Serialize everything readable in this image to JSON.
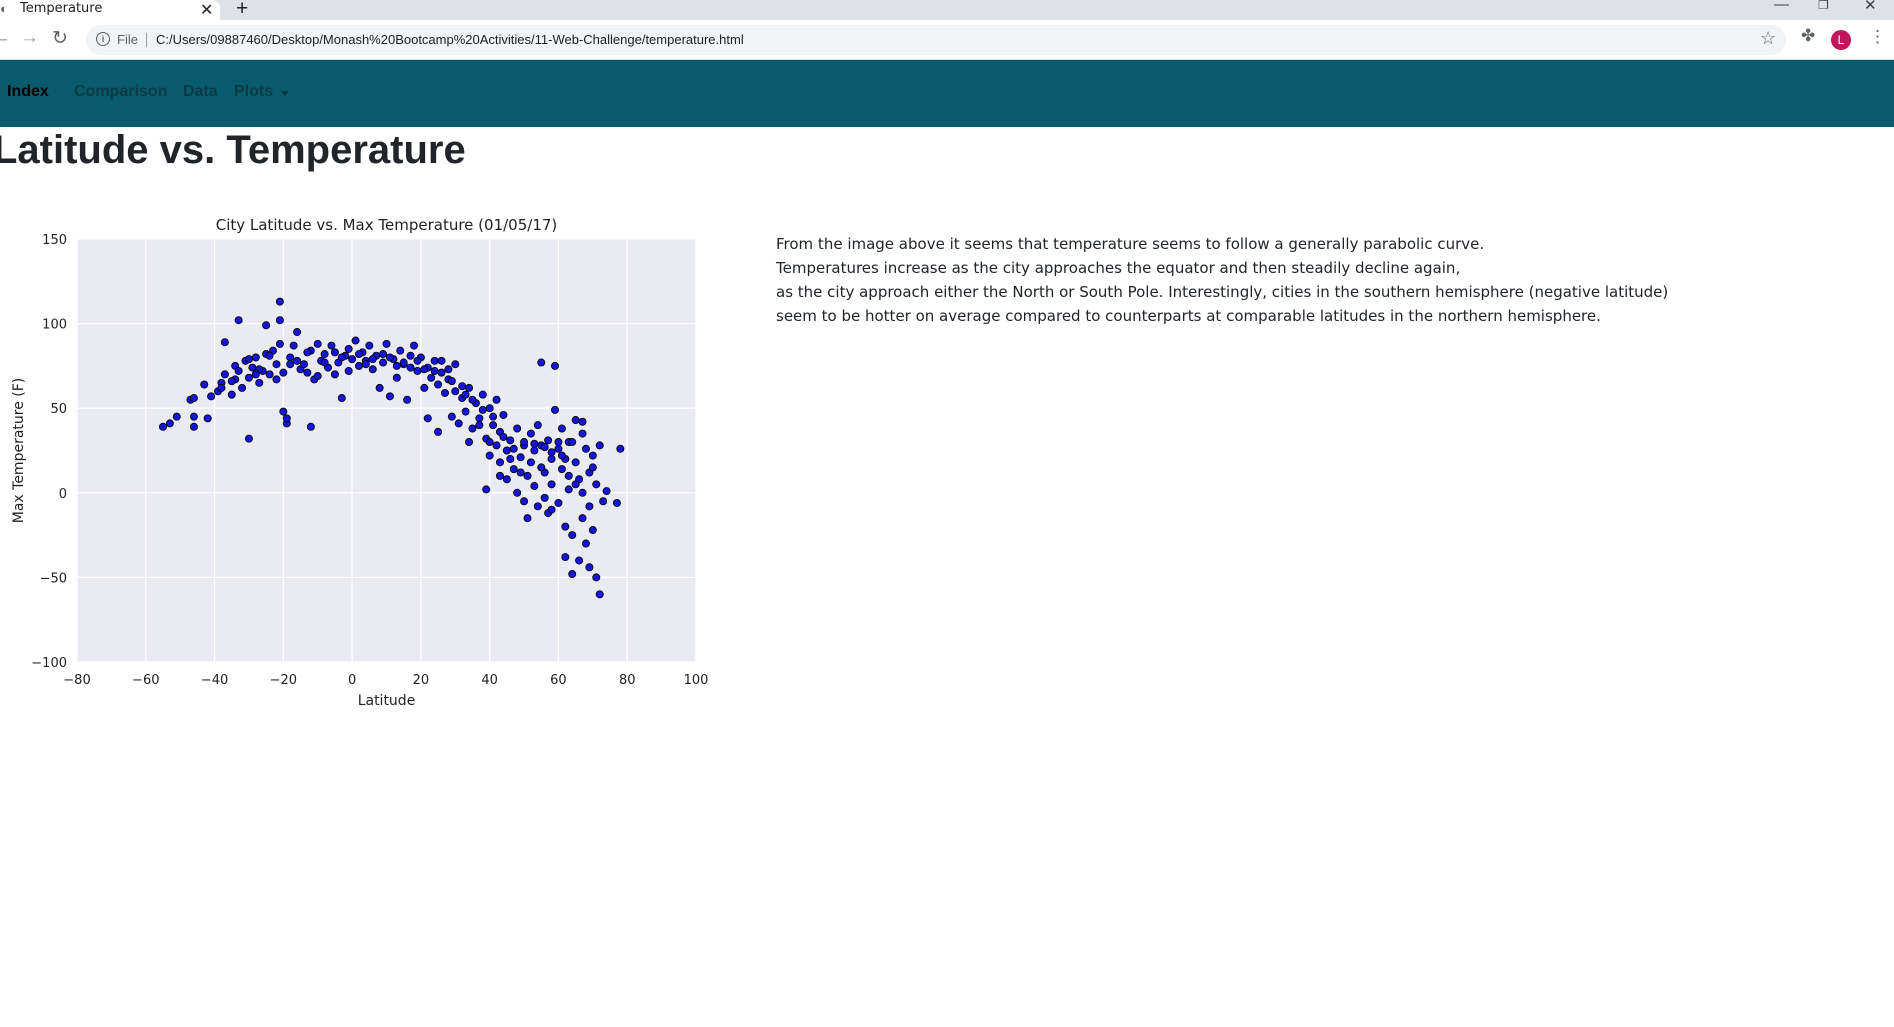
{
  "browser": {
    "tab_title": "Temperature",
    "tab_favicon": "globe-icon",
    "file_label": "File",
    "url": "C:/Users/09887460/Desktop/Monash%20Bootcamp%20Activities/11-Web-Challenge/temperature.html",
    "avatar_initial": "L"
  },
  "navbar": {
    "brand": "Index",
    "links": {
      "comparison": "Comparison",
      "data": "Data",
      "plots": "Plots"
    },
    "background_color": "#075b6d"
  },
  "page": {
    "title": "Latitude vs. Temperature",
    "description": [
      "From the image above it seems that temperature seems to follow a generally parabolic curve.",
      "Temperatures increase as the city approaches the equator and then steadily decline again,",
      "as the city approach either the North or South Pole. Interestingly, cities in the southern hemisphere (negative latitude)",
      "seem to be hotter on average compared to counterparts at comparable latitudes in the northern hemisphere."
    ]
  },
  "chart_data": {
    "type": "scatter",
    "title": "City Latitude vs. Max Temperature (01/05/17)",
    "xlabel": "Latitude",
    "ylabel": "Max Temperature (F)",
    "xlim": [
      -80,
      100
    ],
    "ylim": [
      -100,
      150
    ],
    "xticks": [
      -80,
      -60,
      -40,
      -20,
      0,
      20,
      40,
      60,
      80,
      100
    ],
    "yticks": [
      -100,
      -50,
      0,
      50,
      100,
      150
    ],
    "grid": true,
    "background_color": "#eaeaf2",
    "marker_color": "#1515d8",
    "marker_edge_color": "#000000",
    "points": [
      [
        -55,
        39
      ],
      [
        -53,
        41
      ],
      [
        -51,
        45
      ],
      [
        -47,
        55
      ],
      [
        -46,
        56
      ],
      [
        -46,
        45
      ],
      [
        -46,
        39
      ],
      [
        -43,
        64
      ],
      [
        -42,
        44
      ],
      [
        -41,
        57
      ],
      [
        -39,
        60
      ],
      [
        -38,
        65
      ],
      [
        -37,
        89
      ],
      [
        -37,
        70
      ],
      [
        -35,
        58
      ],
      [
        -34,
        75
      ],
      [
        -34,
        67
      ],
      [
        -33,
        102
      ],
      [
        -33,
        72
      ],
      [
        -32,
        62
      ],
      [
        -31,
        78
      ],
      [
        -30,
        68
      ],
      [
        -30,
        32
      ],
      [
        -29,
        74
      ],
      [
        -28,
        80
      ],
      [
        -27,
        65
      ],
      [
        -26,
        72
      ],
      [
        -25,
        82
      ],
      [
        -25,
        99
      ],
      [
        -24,
        70
      ],
      [
        -23,
        84
      ],
      [
        -22,
        76
      ],
      [
        -21,
        113
      ],
      [
        -21,
        102
      ],
      [
        -21,
        88
      ],
      [
        -20,
        71
      ],
      [
        -20,
        48
      ],
      [
        -19,
        41
      ],
      [
        -19,
        44
      ],
      [
        -18,
        80
      ],
      [
        -17,
        87
      ],
      [
        -16,
        95
      ],
      [
        -15,
        73
      ],
      [
        -14,
        76
      ],
      [
        -13,
        71
      ],
      [
        -12,
        39
      ],
      [
        -12,
        84
      ],
      [
        -11,
        67
      ],
      [
        -10,
        88
      ],
      [
        -9,
        78
      ],
      [
        -8,
        82
      ],
      [
        -7,
        74
      ],
      [
        -6,
        87
      ],
      [
        -5,
        70
      ],
      [
        -4,
        77
      ],
      [
        -3,
        56
      ],
      [
        -2,
        81
      ],
      [
        -1,
        85
      ],
      [
        0,
        79
      ],
      [
        1,
        90
      ],
      [
        2,
        75
      ],
      [
        3,
        83
      ],
      [
        4,
        78
      ],
      [
        5,
        87
      ],
      [
        6,
        73
      ],
      [
        7,
        81
      ],
      [
        8,
        62
      ],
      [
        9,
        77
      ],
      [
        10,
        88
      ],
      [
        11,
        57
      ],
      [
        12,
        79
      ],
      [
        13,
        68
      ],
      [
        14,
        84
      ],
      [
        15,
        76
      ],
      [
        16,
        55
      ],
      [
        17,
        81
      ],
      [
        18,
        87
      ],
      [
        19,
        72
      ],
      [
        20,
        80
      ],
      [
        21,
        62
      ],
      [
        22,
        44
      ],
      [
        22,
        74
      ],
      [
        23,
        68
      ],
      [
        24,
        78
      ],
      [
        25,
        36
      ],
      [
        25,
        64
      ],
      [
        26,
        71
      ],
      [
        27,
        59
      ],
      [
        28,
        73
      ],
      [
        29,
        45
      ],
      [
        30,
        60
      ],
      [
        30,
        76
      ],
      [
        31,
        41
      ],
      [
        32,
        56
      ],
      [
        33,
        48
      ],
      [
        34,
        30
      ],
      [
        34,
        62
      ],
      [
        35,
        38
      ],
      [
        36,
        53
      ],
      [
        37,
        44
      ],
      [
        38,
        58
      ],
      [
        39,
        32
      ],
      [
        39,
        2
      ],
      [
        40,
        50
      ],
      [
        40,
        22
      ],
      [
        41,
        40
      ],
      [
        42,
        28
      ],
      [
        42,
        55
      ],
      [
        43,
        36
      ],
      [
        43,
        18
      ],
      [
        44,
        46
      ],
      [
        45,
        25
      ],
      [
        45,
        8
      ],
      [
        46,
        31
      ],
      [
        47,
        14
      ],
      [
        48,
        38
      ],
      [
        48,
        0
      ],
      [
        49,
        21
      ],
      [
        50,
        28
      ],
      [
        50,
        -5
      ],
      [
        51,
        10
      ],
      [
        51,
        -15
      ],
      [
        52,
        35
      ],
      [
        52,
        18
      ],
      [
        53,
        25
      ],
      [
        53,
        4
      ],
      [
        54,
        40
      ],
      [
        54,
        -8
      ],
      [
        55,
        28
      ],
      [
        55,
        77
      ],
      [
        56,
        12
      ],
      [
        56,
        -3
      ],
      [
        57,
        31
      ],
      [
        57,
        -12
      ],
      [
        58,
        20
      ],
      [
        58,
        5
      ],
      [
        59,
        49
      ],
      [
        59,
        75
      ],
      [
        60,
        26
      ],
      [
        60,
        -6
      ],
      [
        61,
        38
      ],
      [
        61,
        14
      ],
      [
        62,
        -20
      ],
      [
        62,
        -38
      ],
      [
        63,
        30
      ],
      [
        63,
        2
      ],
      [
        64,
        -25
      ],
      [
        64,
        -48
      ],
      [
        65,
        43
      ],
      [
        65,
        18
      ],
      [
        66,
        8
      ],
      [
        66,
        -40
      ],
      [
        67,
        42
      ],
      [
        67,
        -15
      ],
      [
        68,
        26
      ],
      [
        68,
        -30
      ],
      [
        69,
        12
      ],
      [
        69,
        -44
      ],
      [
        70,
        22
      ],
      [
        70,
        -22
      ],
      [
        71,
        5
      ],
      [
        71,
        -50
      ],
      [
        72,
        -60
      ],
      [
        72,
        28
      ],
      [
        73,
        -5
      ],
      [
        74,
        1
      ],
      [
        77,
        -6
      ],
      [
        78,
        26
      ],
      [
        -30,
        79
      ],
      [
        -27,
        73
      ],
      [
        -24,
        81
      ],
      [
        -16,
        78
      ],
      [
        -13,
        83
      ],
      [
        -8,
        77
      ],
      [
        -3,
        80
      ],
      [
        2,
        82
      ],
      [
        6,
        79
      ],
      [
        11,
        80
      ],
      [
        15,
        77
      ],
      [
        19,
        78
      ],
      [
        24,
        72
      ],
      [
        28,
        67
      ],
      [
        32,
        63
      ],
      [
        35,
        55
      ],
      [
        38,
        49
      ],
      [
        41,
        45
      ],
      [
        44,
        33
      ],
      [
        47,
        26
      ],
      [
        50,
        30
      ],
      [
        53,
        29
      ],
      [
        56,
        27
      ],
      [
        58,
        24
      ],
      [
        60,
        30
      ],
      [
        62,
        20
      ],
      [
        63,
        10
      ],
      [
        65,
        5
      ],
      [
        67,
        0
      ],
      [
        69,
        -8
      ],
      [
        70,
        15
      ],
      [
        67,
        35
      ],
      [
        64,
        30
      ],
      [
        61,
        22
      ],
      [
        58,
        -10
      ],
      [
        55,
        15
      ],
      [
        49,
        12
      ],
      [
        46,
        20
      ],
      [
        43,
        10
      ],
      [
        40,
        30
      ],
      [
        37,
        40
      ],
      [
        33,
        58
      ],
      [
        29,
        66
      ],
      [
        26,
        78
      ],
      [
        21,
        73
      ],
      [
        17,
        74
      ],
      [
        13,
        75
      ],
      [
        9,
        82
      ],
      [
        4,
        76
      ],
      [
        -1,
        72
      ],
      [
        -5,
        83
      ],
      [
        -10,
        69
      ],
      [
        -18,
        76
      ],
      [
        -22,
        67
      ],
      [
        -28,
        70
      ],
      [
        -35,
        66
      ],
      [
        -38,
        62
      ]
    ]
  }
}
